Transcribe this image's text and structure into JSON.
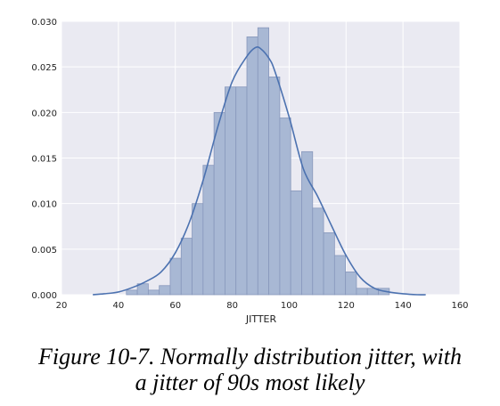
{
  "caption": {
    "line1": "Figure 10-7. Normally distribution jitter, with",
    "line2": "a jitter of 90s most likely"
  },
  "chart_data": {
    "type": "histogram",
    "xlabel": "JITTER",
    "ylabel": "",
    "title": "",
    "xlim": [
      20,
      160
    ],
    "ylim": [
      0,
      0.03
    ],
    "x_ticks": [
      "20",
      "40",
      "60",
      "80",
      "100",
      "120",
      "140",
      "160"
    ],
    "y_ticks": [
      "0.000",
      "0.005",
      "0.010",
      "0.015",
      "0.020",
      "0.025",
      "0.030"
    ],
    "grid": true,
    "colors": {
      "background": "#EAEAF2",
      "bar_fill": "#A8B8D4",
      "bar_edge": "#8898BC",
      "kde_line": "#4C72B0",
      "grid": "#FFFFFF"
    },
    "bin_width": 3.85,
    "bin_starts": [
      42.8,
      46.65,
      50.5,
      54.35,
      58.2,
      62.05,
      65.9,
      69.75,
      73.6,
      77.45,
      81.3,
      85.15,
      89.0,
      92.85,
      96.7,
      100.55,
      104.4,
      108.25,
      112.1,
      115.95,
      119.8,
      123.65,
      127.5,
      131.35
    ],
    "bin_density": [
      0.0005,
      0.0012,
      0.0005,
      0.001,
      0.004,
      0.0062,
      0.01,
      0.0142,
      0.02,
      0.0228,
      0.0228,
      0.0283,
      0.0293,
      0.0239,
      0.0194,
      0.0114,
      0.0157,
      0.0095,
      0.0068,
      0.0043,
      0.0025,
      0.0007,
      0.0007,
      0.0007
    ],
    "kde": {
      "x": [
        31,
        35,
        40,
        45,
        50,
        55,
        60,
        65,
        70,
        75,
        80,
        85,
        88,
        90,
        93,
        95,
        100,
        105,
        110,
        115,
        120,
        125,
        130,
        135,
        140,
        145,
        148
      ],
      "y": [
        0.0,
        0.0001,
        0.0003,
        0.0008,
        0.0015,
        0.0025,
        0.0046,
        0.008,
        0.0128,
        0.0185,
        0.0234,
        0.0261,
        0.0271,
        0.027,
        0.0259,
        0.0245,
        0.0195,
        0.0138,
        0.0108,
        0.0075,
        0.0043,
        0.0019,
        0.0007,
        0.0003,
        0.0001,
        0.0,
        0.0
      ]
    }
  }
}
